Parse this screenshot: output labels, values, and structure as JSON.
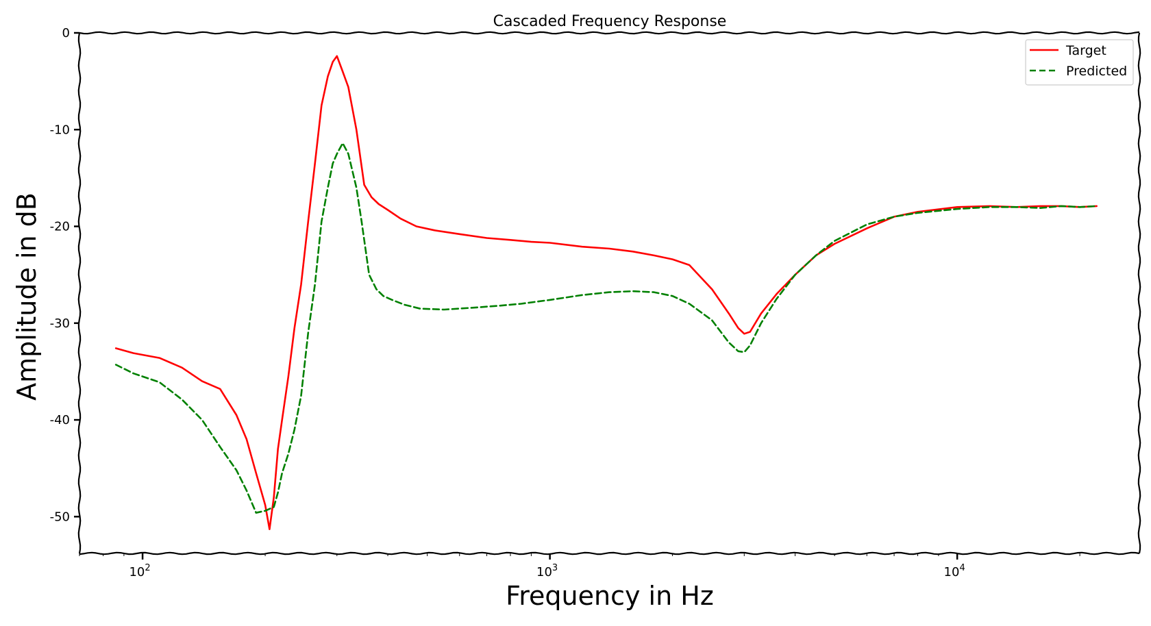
{
  "chart_data": {
    "type": "line",
    "title": "Cascaded Frequency Response",
    "xlabel": "Frequency in Hz",
    "ylabel": "Amplitude in dB",
    "xscale": "log",
    "xlim": [
      70,
      28000
    ],
    "ylim": [
      -53.8,
      0
    ],
    "xticks": [
      {
        "value": 100,
        "base": "10",
        "exp": "2"
      },
      {
        "value": 1000,
        "base": "10",
        "exp": "3"
      },
      {
        "value": 10000,
        "base": "10",
        "exp": "4"
      }
    ],
    "yticks": [
      {
        "value": 0,
        "label": "0"
      },
      {
        "value": -10,
        "label": "-10"
      },
      {
        "value": -20,
        "label": "-20"
      },
      {
        "value": -30,
        "label": "-30"
      },
      {
        "value": -40,
        "label": "-40"
      },
      {
        "value": -50,
        "label": "-50"
      }
    ],
    "grid": false,
    "legend_position": "top-right",
    "series": [
      {
        "name": "Target",
        "color": "#ff0000",
        "style": "solid",
        "x": [
          86,
          95,
          110,
          125,
          140,
          155,
          170,
          180,
          190,
          200,
          205,
          210,
          215,
          220,
          228,
          236,
          245,
          255,
          265,
          275,
          285,
          293,
          300,
          310,
          320,
          335,
          350,
          365,
          380,
          400,
          430,
          470,
          520,
          600,
          700,
          800,
          900,
          1000,
          1200,
          1400,
          1600,
          1800,
          2000,
          2200,
          2500,
          2750,
          2900,
          3000,
          3100,
          3300,
          3600,
          4000,
          4500,
          5000,
          6000,
          7000,
          8000,
          10000,
          12000,
          14000,
          16000,
          18000,
          20000,
          22000
        ],
        "y": [
          -32.6,
          -33.1,
          -33.6,
          -34.6,
          -36.0,
          -36.8,
          -39.5,
          -42.0,
          -45.5,
          -48.8,
          -51.3,
          -48.0,
          -43.0,
          -40.0,
          -35.5,
          -30.5,
          -26.0,
          -19.5,
          -13.5,
          -7.5,
          -4.5,
          -3.0,
          -2.4,
          -4.0,
          -5.6,
          -10.0,
          -15.7,
          -17.0,
          -17.7,
          -18.3,
          -19.2,
          -20.0,
          -20.4,
          -20.8,
          -21.2,
          -21.4,
          -21.6,
          -21.7,
          -22.1,
          -22.3,
          -22.6,
          -23.0,
          -23.4,
          -24.0,
          -26.5,
          -29.0,
          -30.5,
          -31.1,
          -30.9,
          -29.0,
          -27.0,
          -25.0,
          -23.0,
          -21.8,
          -20.2,
          -19.0,
          -18.5,
          -18.0,
          -17.9,
          -18.0,
          -17.9,
          -17.9,
          -18.0,
          -17.9
        ]
      },
      {
        "name": "Predicted",
        "color": "#008000",
        "style": "dashed",
        "x": [
          86,
          95,
          110,
          125,
          140,
          155,
          170,
          180,
          190,
          200,
          210,
          215,
          220,
          228,
          236,
          245,
          255,
          265,
          275,
          285,
          293,
          300,
          310,
          320,
          335,
          345,
          360,
          375,
          390,
          410,
          440,
          480,
          550,
          650,
          750,
          850,
          1000,
          1200,
          1400,
          1600,
          1800,
          2000,
          2200,
          2500,
          2750,
          2900,
          3000,
          3100,
          3300,
          3600,
          4000,
          4500,
          5000,
          6000,
          7000,
          8000,
          10000,
          12000,
          14000,
          16000,
          18000,
          20000,
          22000
        ],
        "y": [
          -34.3,
          -35.2,
          -36.1,
          -37.9,
          -40.0,
          -42.8,
          -45.2,
          -47.3,
          -49.6,
          -49.4,
          -49.0,
          -47.5,
          -45.5,
          -43.5,
          -41.0,
          -37.5,
          -31.0,
          -26.0,
          -19.5,
          -16.0,
          -13.5,
          -12.5,
          -11.4,
          -12.5,
          -16.0,
          -19.5,
          -25.0,
          -26.5,
          -27.2,
          -27.6,
          -28.1,
          -28.5,
          -28.6,
          -28.4,
          -28.2,
          -28.0,
          -27.6,
          -27.1,
          -26.8,
          -26.7,
          -26.8,
          -27.2,
          -28.0,
          -29.7,
          -32.0,
          -32.9,
          -33.0,
          -32.3,
          -30.0,
          -27.5,
          -25.0,
          -23.0,
          -21.5,
          -19.8,
          -19.0,
          -18.6,
          -18.2,
          -18.0,
          -18.0,
          -18.1,
          -17.9,
          -18.0,
          -17.9
        ]
      }
    ]
  }
}
